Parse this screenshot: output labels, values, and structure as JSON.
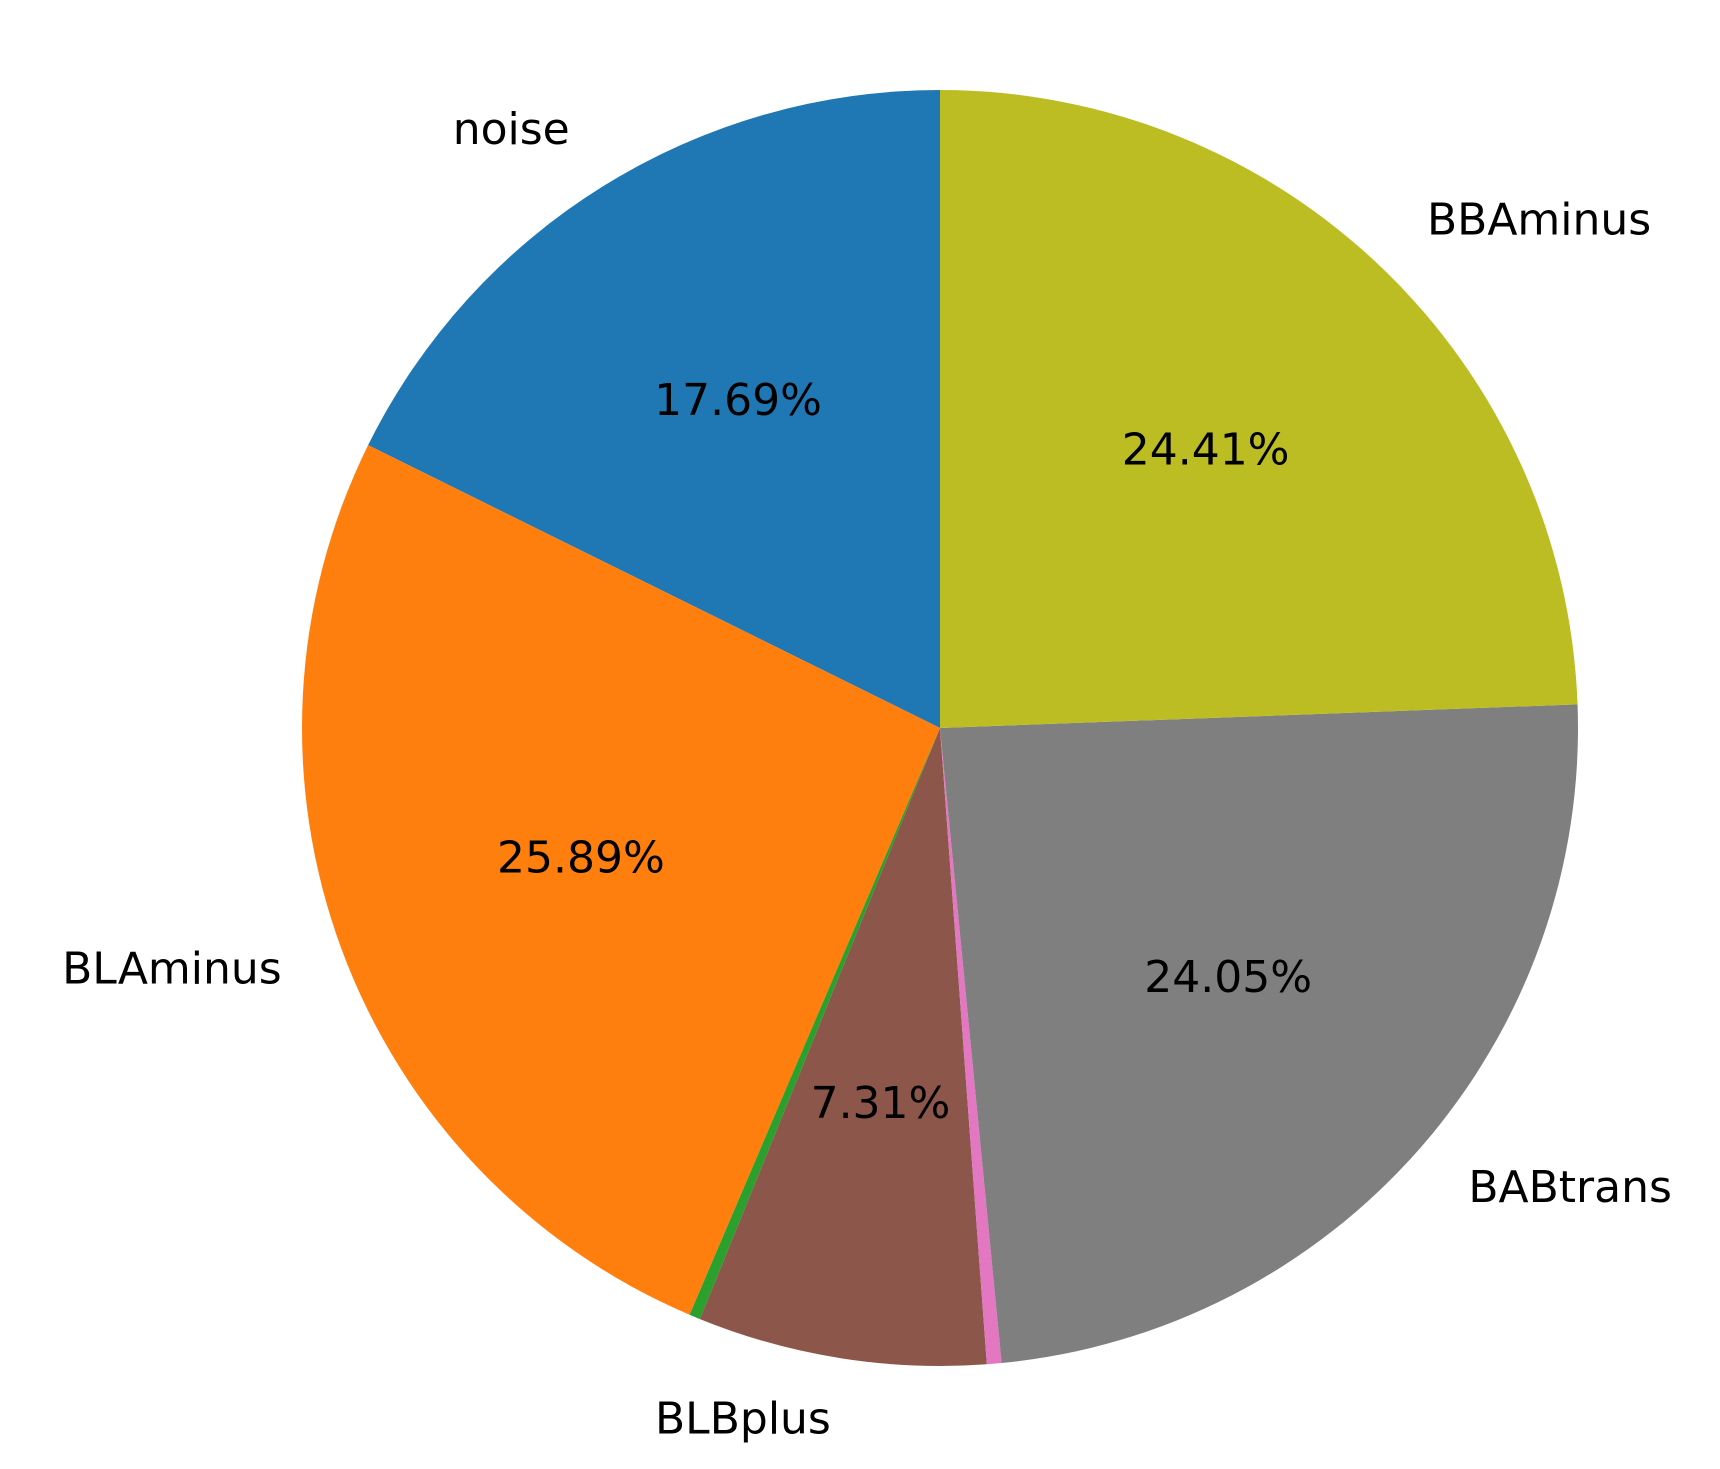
{
  "chart_data": {
    "type": "pie",
    "categories": [
      "noise",
      "BLAminus",
      "",
      "BLBplus",
      "",
      "BABtrans",
      "BBAminus"
    ],
    "values": [
      17.69,
      25.89,
      0.28,
      7.31,
      0.37,
      24.05,
      24.41
    ],
    "labels": [
      "noise",
      "BLAminus",
      "",
      "BLBplus",
      "",
      "BABtrans",
      "BBAminus"
    ],
    "percent_labels": [
      "17.69%",
      "25.89%",
      "",
      "7.31%",
      "",
      "24.05%",
      "24.41%"
    ],
    "colors": [
      "#1f77b4",
      "#ff7f0e",
      "#2ca02c",
      "#8c564b",
      "#e377c2",
      "#7f7f7f",
      "#bcbd22"
    ],
    "start_angle_deg": 90,
    "direction": "counterclockwise"
  }
}
